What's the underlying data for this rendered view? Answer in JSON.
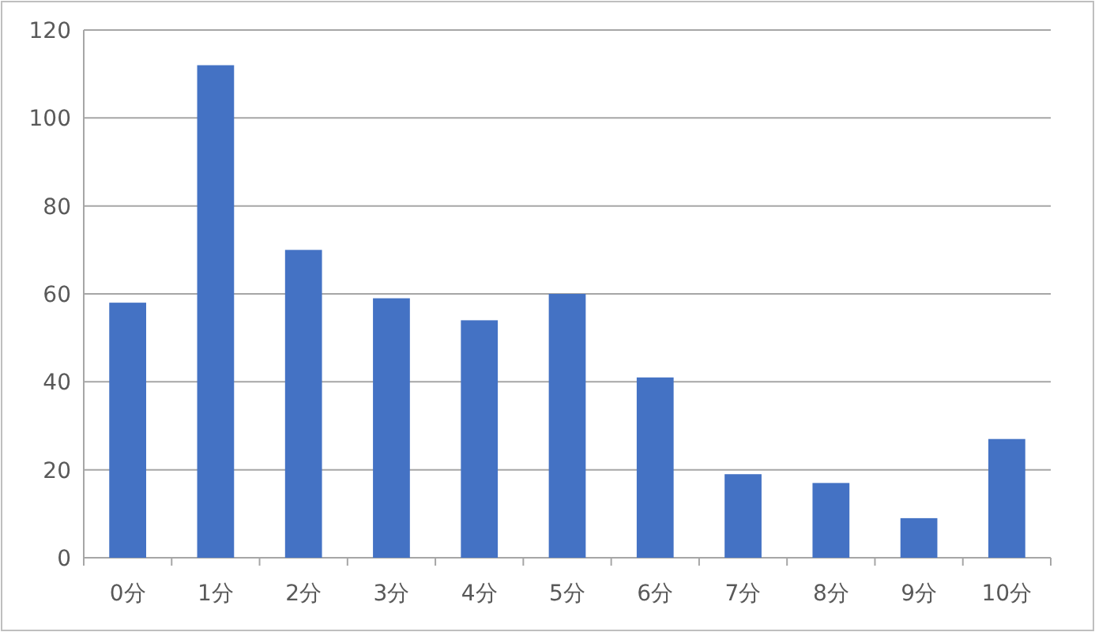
{
  "chart_data": {
    "type": "bar",
    "categories": [
      "0分",
      "1分",
      "2分",
      "3分",
      "4分",
      "5分",
      "6分",
      "7分",
      "8分",
      "9分",
      "10分"
    ],
    "values": [
      58,
      112,
      70,
      59,
      54,
      60,
      41,
      19,
      17,
      9,
      27
    ],
    "color": "#4472c4",
    "ylim": [
      0,
      120
    ],
    "yticks": [
      0,
      20,
      40,
      60,
      80,
      100,
      120
    ],
    "grid": "y"
  }
}
